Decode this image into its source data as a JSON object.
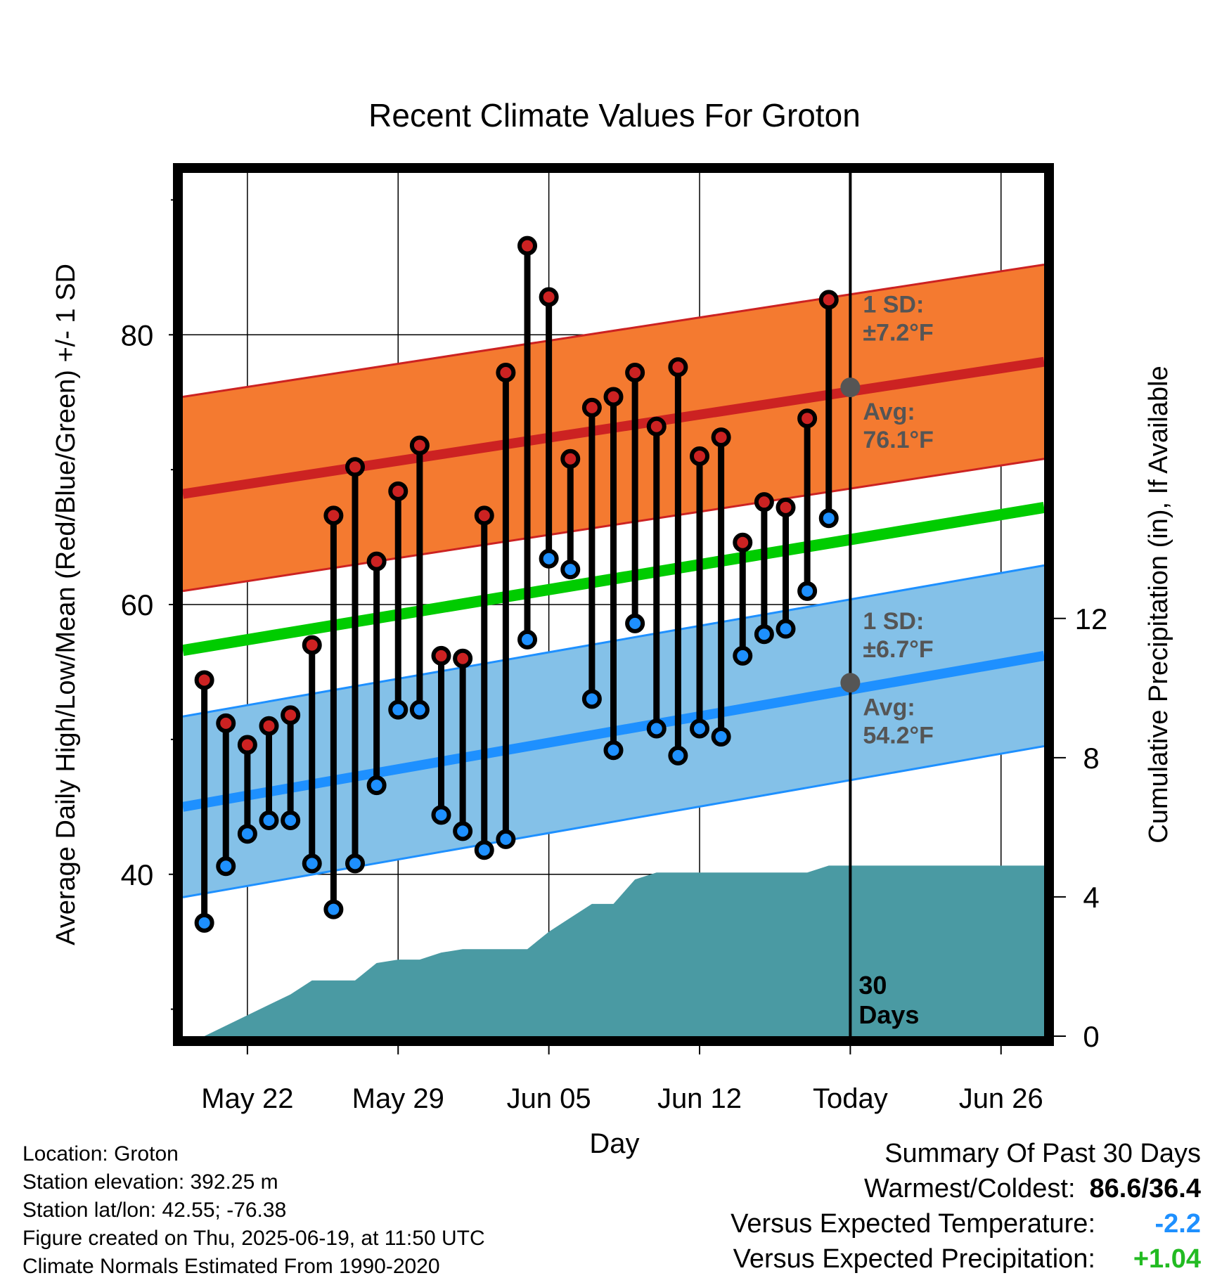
{
  "chart_data": {
    "type": "line",
    "title": "Recent Climate Values For Groton",
    "xlabel": "Day",
    "ylabel_left": "Average Daily High/Low/Mean (Red/Blue/Green) +/- 1 SD",
    "ylabel_right": "Cumulative Precipitation (in), If Available",
    "x_ticks": [
      "May 22",
      "May 29",
      "Jun 05",
      "Jun 12",
      "Today",
      "Jun 26"
    ],
    "x_tick_days": [
      "2025-05-22",
      "2025-05-29",
      "2025-06-05",
      "2025-06-12",
      "2025-06-19",
      "2025-06-26"
    ],
    "x_range": [
      "2025-05-19",
      "2025-06-28"
    ],
    "y_left_range": [
      28,
      92
    ],
    "y_left_ticks": [
      40,
      60,
      80
    ],
    "y_right_range": [
      0,
      24.8
    ],
    "y_right_ticks": [
      0,
      4,
      8,
      12
    ],
    "grid": true,
    "days": [
      "2025-05-20",
      "2025-05-21",
      "2025-05-22",
      "2025-05-23",
      "2025-05-24",
      "2025-05-25",
      "2025-05-26",
      "2025-05-27",
      "2025-05-28",
      "2025-05-29",
      "2025-05-30",
      "2025-05-31",
      "2025-06-01",
      "2025-06-02",
      "2025-06-03",
      "2025-06-04",
      "2025-06-05",
      "2025-06-06",
      "2025-06-07",
      "2025-06-08",
      "2025-06-09",
      "2025-06-10",
      "2025-06-11",
      "2025-06-12",
      "2025-06-13",
      "2025-06-14",
      "2025-06-15",
      "2025-06-16",
      "2025-06-17",
      "2025-06-18"
    ],
    "series": [
      {
        "name": "High",
        "color": "#cc2222",
        "values": [
          54.4,
          51.2,
          49.6,
          51.0,
          51.8,
          57.0,
          66.6,
          70.2,
          63.2,
          68.4,
          71.8,
          56.2,
          56.0,
          66.6,
          77.2,
          86.6,
          82.8,
          70.8,
          74.6,
          75.4,
          77.2,
          73.2,
          77.6,
          71.0,
          72.4,
          64.6,
          67.6,
          67.2,
          73.8,
          82.6
        ]
      },
      {
        "name": "Low",
        "color": "#1e90ff",
        "values": [
          36.4,
          40.6,
          43.0,
          44.0,
          44.0,
          40.8,
          37.4,
          40.8,
          46.6,
          52.2,
          52.2,
          44.4,
          43.2,
          41.8,
          42.6,
          57.4,
          63.4,
          62.6,
          53.0,
          49.2,
          58.6,
          50.8,
          48.8,
          50.8,
          50.2,
          56.2,
          57.8,
          58.2,
          61.0,
          66.4
        ]
      }
    ],
    "normals": {
      "high_mean": {
        "start": 68.2,
        "end": 78.0,
        "color": "#cc2222"
      },
      "high_sd": 7.2,
      "low_mean": {
        "start": 45.0,
        "end": 56.2,
        "color": "#1e90ff"
      },
      "low_sd": 6.7,
      "mean": {
        "start": 56.6,
        "end": 67.2,
        "color": "#00cc00"
      }
    },
    "precip_cumulative": {
      "color": "#4a9aa3",
      "points": [
        [
          "2025-05-20",
          0.0
        ],
        [
          "2025-05-21",
          0.3
        ],
        [
          "2025-05-22",
          0.6
        ],
        [
          "2025-05-23",
          0.9
        ],
        [
          "2025-05-24",
          1.2
        ],
        [
          "2025-05-25",
          1.6
        ],
        [
          "2025-05-26",
          1.6
        ],
        [
          "2025-05-27",
          1.6
        ],
        [
          "2025-05-28",
          2.1
        ],
        [
          "2025-05-29",
          2.2
        ],
        [
          "2025-05-30",
          2.2
        ],
        [
          "2025-05-31",
          2.4
        ],
        [
          "2025-06-01",
          2.5
        ],
        [
          "2025-06-02",
          2.5
        ],
        [
          "2025-06-03",
          2.5
        ],
        [
          "2025-06-04",
          2.5
        ],
        [
          "2025-06-05",
          3.0
        ],
        [
          "2025-06-06",
          3.4
        ],
        [
          "2025-06-07",
          3.8
        ],
        [
          "2025-06-08",
          3.8
        ],
        [
          "2025-06-09",
          4.5
        ],
        [
          "2025-06-10",
          4.7
        ],
        [
          "2025-06-11",
          4.7
        ],
        [
          "2025-06-12",
          4.7
        ],
        [
          "2025-06-13",
          4.7
        ],
        [
          "2025-06-14",
          4.7
        ],
        [
          "2025-06-15",
          4.7
        ],
        [
          "2025-06-16",
          4.7
        ],
        [
          "2025-06-17",
          4.7
        ],
        [
          "2025-06-18",
          4.9
        ],
        [
          "2025-06-28",
          4.9
        ]
      ]
    },
    "today": "2025-06-19",
    "annotations": {
      "high_sd_label": [
        "1 SD:",
        "±7.2°F"
      ],
      "high_avg_label": [
        "Avg:",
        "76.1°F"
      ],
      "low_sd_label": [
        "1 SD:",
        "±6.7°F"
      ],
      "low_avg_label": [
        "Avg:",
        "54.2°F"
      ],
      "today_high_avg": 76.1,
      "today_low_avg": 54.2,
      "window_label": [
        "30",
        "Days"
      ]
    }
  },
  "footer": {
    "location": "Location: Groton",
    "elevation": "Station elevation: 392.25 m",
    "latlon": "Station lat/lon: 42.55; -76.38",
    "created": "Figure created on Thu, 2025-06-19, at 11:50 UTC",
    "normals": "Climate Normals Estimated From 1990-2020"
  },
  "summary": {
    "title": "Summary Of Past 30 Days",
    "warmest_label": "Warmest/Coldest:",
    "warmest_value": "86.6/36.4",
    "temp_label": "Versus Expected Temperature:",
    "temp_value": "-2.2",
    "temp_color": "#1e90ff",
    "precip_label": "Versus Expected Precipitation:",
    "precip_value": "+1.04",
    "precip_color": "#22bb22"
  }
}
